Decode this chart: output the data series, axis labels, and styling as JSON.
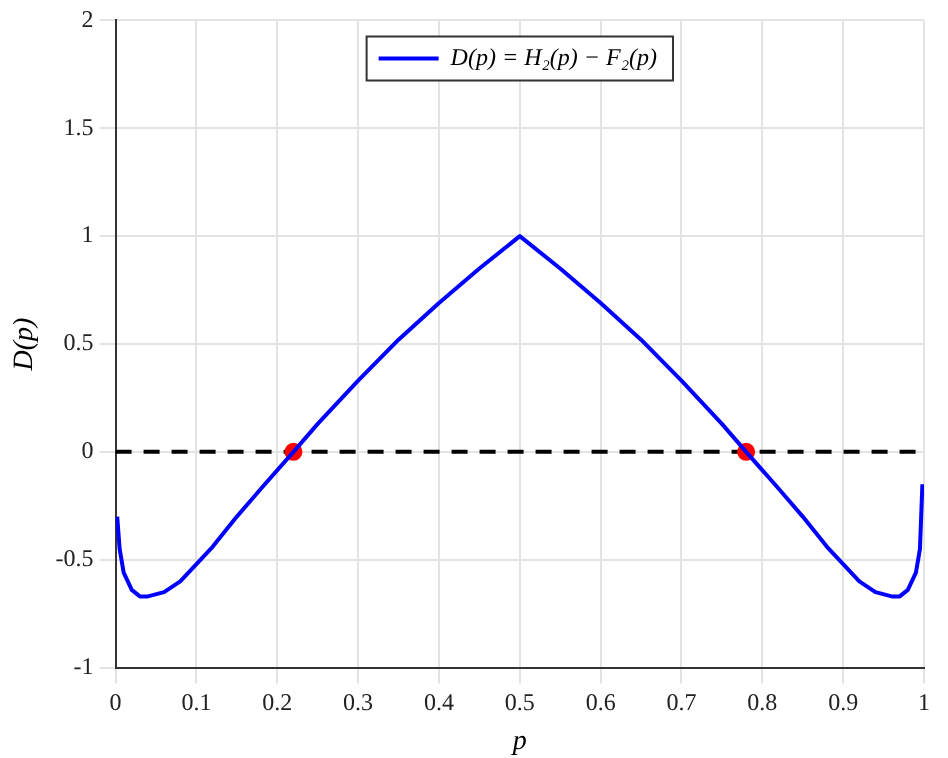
{
  "chart_data": {
    "type": "line",
    "xlabel": "p",
    "ylabel": "D(p)",
    "xlim": [
      0,
      1
    ],
    "xticks": [
      0,
      0.1,
      0.2,
      0.3,
      0.4,
      0.5,
      0.6,
      0.7,
      0.8,
      0.9,
      1
    ],
    "ylim": [
      -1,
      2
    ],
    "yticks": [
      -1,
      -0.5,
      0,
      0.5,
      1,
      1.5,
      2
    ],
    "grid": true,
    "legend": "top",
    "marker": "none",
    "line_style": "solid",
    "ref_lines": [
      {
        "axis": "y",
        "value": 0,
        "color": "#000000",
        "line_style": "dashed"
      }
    ],
    "series": [
      {
        "name": "D(p) = H₂(p) − F₂(p)",
        "color": "#0000ff",
        "type": "line",
        "x": [
          0.002,
          0.005,
          0.01,
          0.02,
          0.03,
          0.04,
          0.06,
          0.08,
          0.1,
          0.12,
          0.15,
          0.18,
          0.22,
          0.25,
          0.3,
          0.35,
          0.4,
          0.45,
          0.5,
          0.55,
          0.6,
          0.65,
          0.7,
          0.75,
          0.78,
          0.82,
          0.85,
          0.88,
          0.9,
          0.92,
          0.94,
          0.96,
          0.97,
          0.98,
          0.99,
          0.995,
          0.998
        ],
        "values": [
          -0.3,
          -0.45,
          -0.56,
          -0.64,
          -0.67,
          -0.67,
          -0.65,
          -0.6,
          -0.52,
          -0.44,
          -0.3,
          -0.17,
          0,
          0.13,
          0.33,
          0.52,
          0.69,
          0.85,
          1,
          0.85,
          0.69,
          0.52,
          0.33,
          0.13,
          0,
          -0.17,
          -0.3,
          -0.44,
          -0.52,
          -0.6,
          -0.65,
          -0.67,
          -0.67,
          -0.64,
          -0.56,
          -0.45,
          -0.15
        ]
      },
      {
        "color": "#ff0000",
        "type": "scatter",
        "marker": "circle",
        "x": [
          0.22,
          0.78
        ],
        "values": [
          0,
          0
        ]
      }
    ]
  }
}
